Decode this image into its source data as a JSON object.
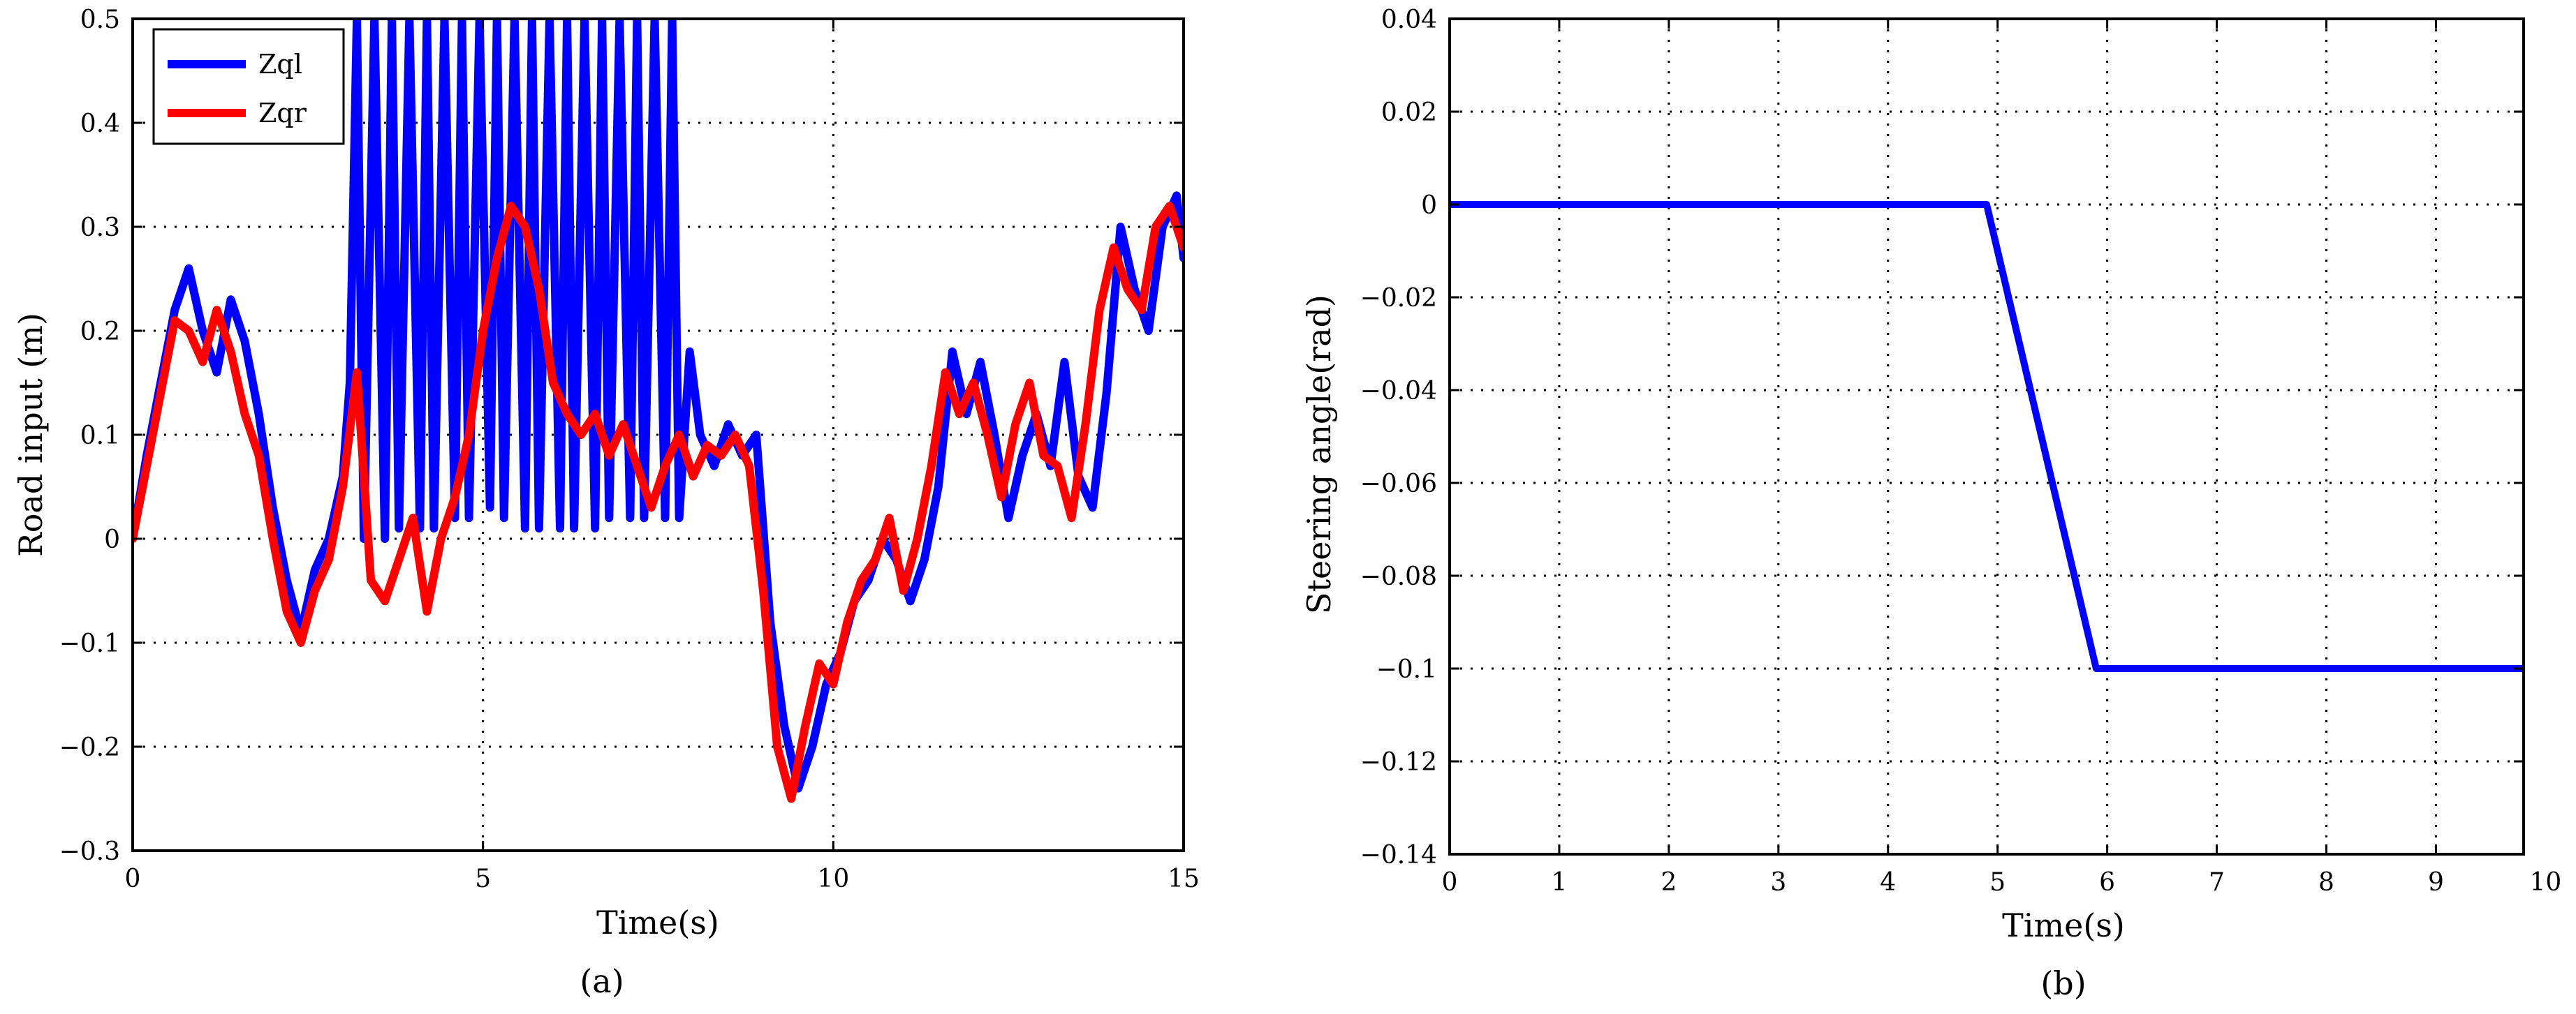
{
  "chart_data": [
    {
      "type": "line",
      "caption": "(a)",
      "xlabel": "Time(s)",
      "ylabel": "Road input (m)",
      "xlim": [
        0,
        15
      ],
      "ylim": [
        -0.3,
        0.5
      ],
      "xticks": [
        "0",
        "5",
        "10",
        "15"
      ],
      "yticks": [
        "−0.3",
        "−0.2",
        "−0.1",
        "0",
        "0.1",
        "0.2",
        "0.3",
        "0.4",
        "0.5"
      ],
      "grid": true,
      "legend": {
        "position": "top-left"
      },
      "series": [
        {
          "name": "Zql",
          "color": "#0000ff",
          "x": [
            0,
            0.2,
            0.4,
            0.6,
            0.8,
            1.0,
            1.2,
            1.4,
            1.6,
            1.8,
            2.0,
            2.2,
            2.4,
            2.6,
            2.8,
            3.0,
            3.1,
            3.2,
            3.3,
            3.45,
            3.6,
            3.7,
            3.8,
            3.95,
            4.1,
            4.2,
            4.3,
            4.45,
            4.6,
            4.7,
            4.8,
            4.95,
            5.1,
            5.2,
            5.3,
            5.45,
            5.6,
            5.7,
            5.8,
            5.95,
            6.1,
            6.2,
            6.3,
            6.45,
            6.6,
            6.7,
            6.8,
            6.95,
            7.1,
            7.2,
            7.3,
            7.45,
            7.6,
            7.7,
            7.8,
            7.95,
            8.1,
            8.3,
            8.5,
            8.7,
            8.9,
            9.1,
            9.3,
            9.5,
            9.7,
            9.9,
            10.1,
            10.3,
            10.5,
            10.7,
            10.9,
            11.1,
            11.3,
            11.5,
            11.7,
            11.9,
            12.1,
            12.3,
            12.5,
            12.7,
            12.9,
            13.1,
            13.3,
            13.5,
            13.7,
            13.9,
            14.1,
            14.3,
            14.5,
            14.7,
            14.9,
            15.0
          ],
          "y": [
            0.0,
            0.08,
            0.15,
            0.22,
            0.26,
            0.2,
            0.16,
            0.23,
            0.19,
            0.12,
            0.03,
            -0.04,
            -0.09,
            -0.03,
            0.0,
            0.06,
            0.15,
            0.5,
            0.0,
            0.5,
            0.0,
            0.5,
            0.01,
            0.5,
            0.01,
            0.5,
            0.01,
            0.5,
            0.02,
            0.5,
            0.02,
            0.5,
            0.03,
            0.5,
            0.02,
            0.5,
            0.01,
            0.5,
            0.01,
            0.5,
            0.01,
            0.5,
            0.01,
            0.5,
            0.01,
            0.5,
            0.02,
            0.5,
            0.02,
            0.5,
            0.02,
            0.5,
            0.02,
            0.5,
            0.02,
            0.18,
            0.1,
            0.07,
            0.11,
            0.08,
            0.1,
            -0.08,
            -0.18,
            -0.24,
            -0.2,
            -0.14,
            -0.11,
            -0.06,
            -0.04,
            0.0,
            -0.02,
            -0.06,
            -0.02,
            0.05,
            0.18,
            0.12,
            0.17,
            0.1,
            0.02,
            0.08,
            0.12,
            0.07,
            0.17,
            0.06,
            0.03,
            0.14,
            0.3,
            0.24,
            0.2,
            0.3,
            0.33,
            0.27
          ]
        },
        {
          "name": "Zqr",
          "color": "#ff0000",
          "x": [
            0,
            0.2,
            0.4,
            0.6,
            0.8,
            1.0,
            1.2,
            1.4,
            1.6,
            1.8,
            2.0,
            2.2,
            2.4,
            2.6,
            2.8,
            3.0,
            3.2,
            3.4,
            3.6,
            3.8,
            4.0,
            4.2,
            4.4,
            4.6,
            4.8,
            5.0,
            5.2,
            5.4,
            5.6,
            5.8,
            6.0,
            6.2,
            6.4,
            6.6,
            6.8,
            7.0,
            7.2,
            7.4,
            7.6,
            7.8,
            8.0,
            8.2,
            8.4,
            8.6,
            8.8,
            9.0,
            9.2,
            9.4,
            9.6,
            9.8,
            10.0,
            10.2,
            10.4,
            10.6,
            10.8,
            11.0,
            11.2,
            11.4,
            11.6,
            11.8,
            12.0,
            12.2,
            12.4,
            12.6,
            12.8,
            13.0,
            13.2,
            13.4,
            13.6,
            13.8,
            14.0,
            14.2,
            14.4,
            14.6,
            14.8,
            15.0
          ],
          "y": [
            0.0,
            0.07,
            0.14,
            0.21,
            0.2,
            0.17,
            0.22,
            0.18,
            0.12,
            0.08,
            0.0,
            -0.07,
            -0.1,
            -0.05,
            -0.02,
            0.05,
            0.16,
            -0.04,
            -0.06,
            -0.02,
            0.02,
            -0.07,
            0.0,
            0.04,
            0.1,
            0.2,
            0.27,
            0.32,
            0.3,
            0.24,
            0.15,
            0.12,
            0.1,
            0.12,
            0.08,
            0.11,
            0.07,
            0.03,
            0.07,
            0.1,
            0.06,
            0.09,
            0.08,
            0.1,
            0.07,
            -0.05,
            -0.2,
            -0.25,
            -0.18,
            -0.12,
            -0.14,
            -0.08,
            -0.04,
            -0.02,
            0.02,
            -0.05,
            0.0,
            0.07,
            0.16,
            0.12,
            0.15,
            0.1,
            0.04,
            0.11,
            0.15,
            0.08,
            0.07,
            0.02,
            0.11,
            0.22,
            0.28,
            0.24,
            0.22,
            0.3,
            0.32,
            0.28
          ]
        }
      ]
    },
    {
      "type": "line",
      "caption": "(b)",
      "xlabel": "Time(s)",
      "ylabel": "Steering angle(rad)",
      "xlim": [
        0,
        9.8
      ],
      "ylim": [
        -0.14,
        0.04
      ],
      "xticks": [
        "0",
        "1",
        "2",
        "3",
        "4",
        "5",
        "6",
        "7",
        "8",
        "9",
        "10"
      ],
      "yticks": [
        "−0.14",
        "−0.12",
        "−0.1",
        "−0.08",
        "−0.06",
        "−0.04",
        "−0.02",
        "0",
        "0.02",
        "0.04"
      ],
      "grid": true,
      "series": [
        {
          "color": "#0000ff",
          "x": [
            0,
            4.9,
            5.9,
            9.8
          ],
          "y": [
            0,
            0,
            -0.1,
            -0.1
          ]
        }
      ]
    }
  ]
}
